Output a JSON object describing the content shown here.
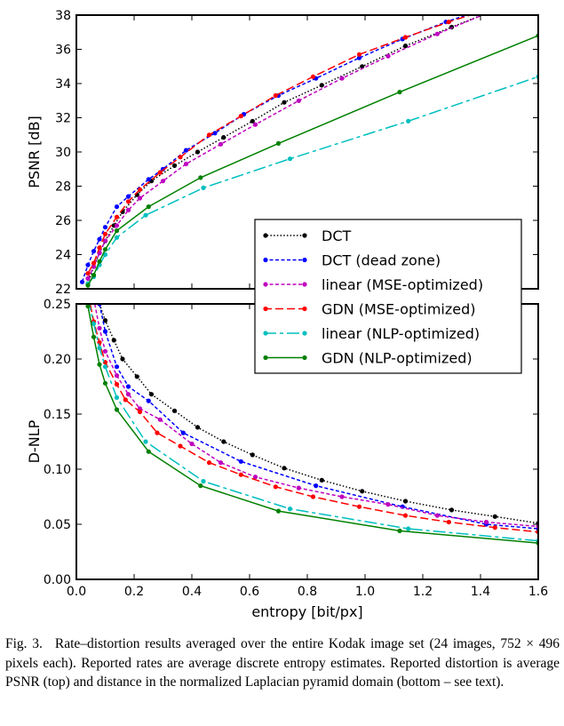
{
  "chart_data": [
    {
      "type": "line",
      "panel": "top",
      "title": "",
      "xlabel": "",
      "ylabel": "PSNR [dB]",
      "xlim": [
        0,
        1.6
      ],
      "ylim": [
        22,
        38
      ],
      "yticks": [
        "22",
        "24",
        "26",
        "28",
        "30",
        "32",
        "34",
        "36",
        "38"
      ],
      "grid": false,
      "legend": "lower-right",
      "series": [
        {
          "name": "DCT",
          "color": "#000000",
          "dash": "dotted",
          "x": [
            0.04,
            0.06,
            0.08,
            0.1,
            0.13,
            0.16,
            0.21,
            0.26,
            0.34,
            0.42,
            0.51,
            0.61,
            0.72,
            0.85,
            0.99,
            1.14,
            1.3,
            1.45
          ],
          "y": [
            22.3,
            23.3,
            24.1,
            24.8,
            25.7,
            26.5,
            27.5,
            28.3,
            29.2,
            30.0,
            30.85,
            31.8,
            32.9,
            33.9,
            35.0,
            36.2,
            37.3,
            38.3
          ]
        },
        {
          "name": "DCT (dead zone)",
          "color": "#0000ff",
          "dash": "dashed",
          "x": [
            0.02,
            0.04,
            0.06,
            0.08,
            0.1,
            0.14,
            0.18,
            0.25,
            0.3,
            0.38,
            0.48,
            0.58,
            0.7,
            0.83,
            0.98,
            1.13,
            1.28,
            1.42
          ],
          "y": [
            22.4,
            23.4,
            24.2,
            24.9,
            25.6,
            26.8,
            27.4,
            28.4,
            29.0,
            30.1,
            31.1,
            32.2,
            33.3,
            34.3,
            35.5,
            36.6,
            37.6,
            38.4
          ]
        },
        {
          "name": "linear (MSE-optimized)",
          "color": "#bf00bf",
          "dash": "dashed",
          "x": [
            0.04,
            0.06,
            0.08,
            0.1,
            0.14,
            0.18,
            0.22,
            0.3,
            0.38,
            0.5,
            0.62,
            0.77,
            0.92,
            1.08,
            1.25,
            1.42
          ],
          "y": [
            22.6,
            23.3,
            24.1,
            24.8,
            25.7,
            26.6,
            27.3,
            28.3,
            29.3,
            30.45,
            31.6,
            33.0,
            34.3,
            35.6,
            36.9,
            38.1
          ]
        },
        {
          "name": "GDN (MSE-optimized)",
          "color": "#ff0000",
          "dash": "longdash",
          "x": [
            0.04,
            0.06,
            0.08,
            0.1,
            0.14,
            0.18,
            0.22,
            0.29,
            0.36,
            0.46,
            0.57,
            0.69,
            0.82,
            0.98,
            1.14,
            1.29,
            1.42
          ],
          "y": [
            22.9,
            23.5,
            24.4,
            25.2,
            26.2,
            27.1,
            27.8,
            28.8,
            29.7,
            31.0,
            32.1,
            33.3,
            34.4,
            35.7,
            36.7,
            37.6,
            38.3
          ]
        },
        {
          "name": "linear (NLP-optimized)",
          "color": "#00bfbf",
          "dash": "dashlong",
          "x": [
            0.04,
            0.06,
            0.08,
            0.1,
            0.14,
            0.24,
            0.44,
            0.74,
            1.15,
            1.6
          ],
          "y": [
            22.3,
            22.7,
            23.4,
            24.0,
            25.0,
            26.3,
            27.9,
            29.6,
            31.8,
            34.4
          ]
        },
        {
          "name": "GDN (NLP-optimized)",
          "color": "#008000",
          "dash": "solid",
          "x": [
            0.04,
            0.06,
            0.08,
            0.1,
            0.14,
            0.25,
            0.43,
            0.7,
            1.12,
            1.6
          ],
          "y": [
            22.2,
            22.8,
            23.6,
            24.3,
            25.4,
            26.8,
            28.5,
            30.5,
            33.5,
            36.8
          ]
        }
      ]
    },
    {
      "type": "line",
      "panel": "bottom",
      "title": "",
      "xlabel": "entropy [bit/px]",
      "ylabel": "D-NLP",
      "xlim": [
        0,
        1.6
      ],
      "ylim": [
        0,
        0.25
      ],
      "xticks": [
        "0.0",
        "0.2",
        "0.4",
        "0.6",
        "0.8",
        "1.0",
        "1.2",
        "1.4",
        "1.6"
      ],
      "yticks": [
        "0.00",
        "0.05",
        "0.10",
        "0.15",
        "0.20",
        "0.25"
      ],
      "grid": false,
      "series": [
        {
          "name": "DCT",
          "color": "#000000",
          "dash": "dotted",
          "x": [
            0.06,
            0.08,
            0.1,
            0.13,
            0.16,
            0.21,
            0.26,
            0.34,
            0.42,
            0.51,
            0.61,
            0.72,
            0.85,
            0.99,
            1.14,
            1.3,
            1.45,
            1.6
          ],
          "y": [
            0.27,
            0.25,
            0.235,
            0.217,
            0.2,
            0.184,
            0.168,
            0.153,
            0.138,
            0.125,
            0.113,
            0.101,
            0.09,
            0.08,
            0.071,
            0.063,
            0.057,
            0.051
          ]
        },
        {
          "name": "DCT (dead zone)",
          "color": "#0000ff",
          "dash": "dashed",
          "x": [
            0.06,
            0.08,
            0.1,
            0.14,
            0.18,
            0.25,
            0.37,
            0.57,
            0.83,
            1.13,
            1.42,
            1.6
          ],
          "y": [
            0.27,
            0.25,
            0.225,
            0.193,
            0.175,
            0.162,
            0.133,
            0.107,
            0.085,
            0.066,
            0.05,
            0.046
          ]
        },
        {
          "name": "linear (MSE-optimized)",
          "color": "#bf00bf",
          "dash": "dashed",
          "x": [
            0.06,
            0.08,
            0.1,
            0.14,
            0.18,
            0.22,
            0.29,
            0.4,
            0.5,
            0.62,
            0.77,
            0.92,
            1.08,
            1.25,
            1.42,
            1.6
          ],
          "y": [
            0.255,
            0.228,
            0.207,
            0.185,
            0.168,
            0.155,
            0.145,
            0.123,
            0.106,
            0.093,
            0.083,
            0.075,
            0.068,
            0.058,
            0.052,
            0.048
          ]
        },
        {
          "name": "GDN (MSE-optimized)",
          "color": "#ff0000",
          "dash": "longdash",
          "x": [
            0.04,
            0.06,
            0.08,
            0.1,
            0.14,
            0.17,
            0.22,
            0.28,
            0.36,
            0.46,
            0.57,
            0.69,
            0.82,
            0.98,
            1.14,
            1.29,
            1.45,
            1.6
          ],
          "y": [
            0.26,
            0.234,
            0.215,
            0.197,
            0.177,
            0.163,
            0.152,
            0.133,
            0.121,
            0.106,
            0.095,
            0.084,
            0.075,
            0.066,
            0.058,
            0.052,
            0.047,
            0.043
          ]
        },
        {
          "name": "linear (NLP-optimized)",
          "color": "#00bfbf",
          "dash": "dashlong",
          "x": [
            0.04,
            0.06,
            0.08,
            0.1,
            0.14,
            0.24,
            0.44,
            0.74,
            1.15,
            1.6
          ],
          "y": [
            0.255,
            0.232,
            0.21,
            0.193,
            0.165,
            0.125,
            0.089,
            0.064,
            0.046,
            0.035
          ]
        },
        {
          "name": "GDN (NLP-optimized)",
          "color": "#008000",
          "dash": "solid",
          "x": [
            0.04,
            0.06,
            0.08,
            0.1,
            0.14,
            0.25,
            0.43,
            0.7,
            1.12,
            1.6
          ],
          "y": [
            0.248,
            0.22,
            0.195,
            0.178,
            0.154,
            0.116,
            0.085,
            0.062,
            0.044,
            0.033
          ]
        }
      ]
    }
  ],
  "caption": {
    "label": "Fig. 3.",
    "text": "Rate–distortion results averaged over the entire Kodak image set (24 images, 752 × 496 pixels each). Reported rates are average discrete entropy estimates. Reported distortion is average PSNR (top) and distance in the normalized Laplacian pyramid domain (bottom – see text)."
  }
}
